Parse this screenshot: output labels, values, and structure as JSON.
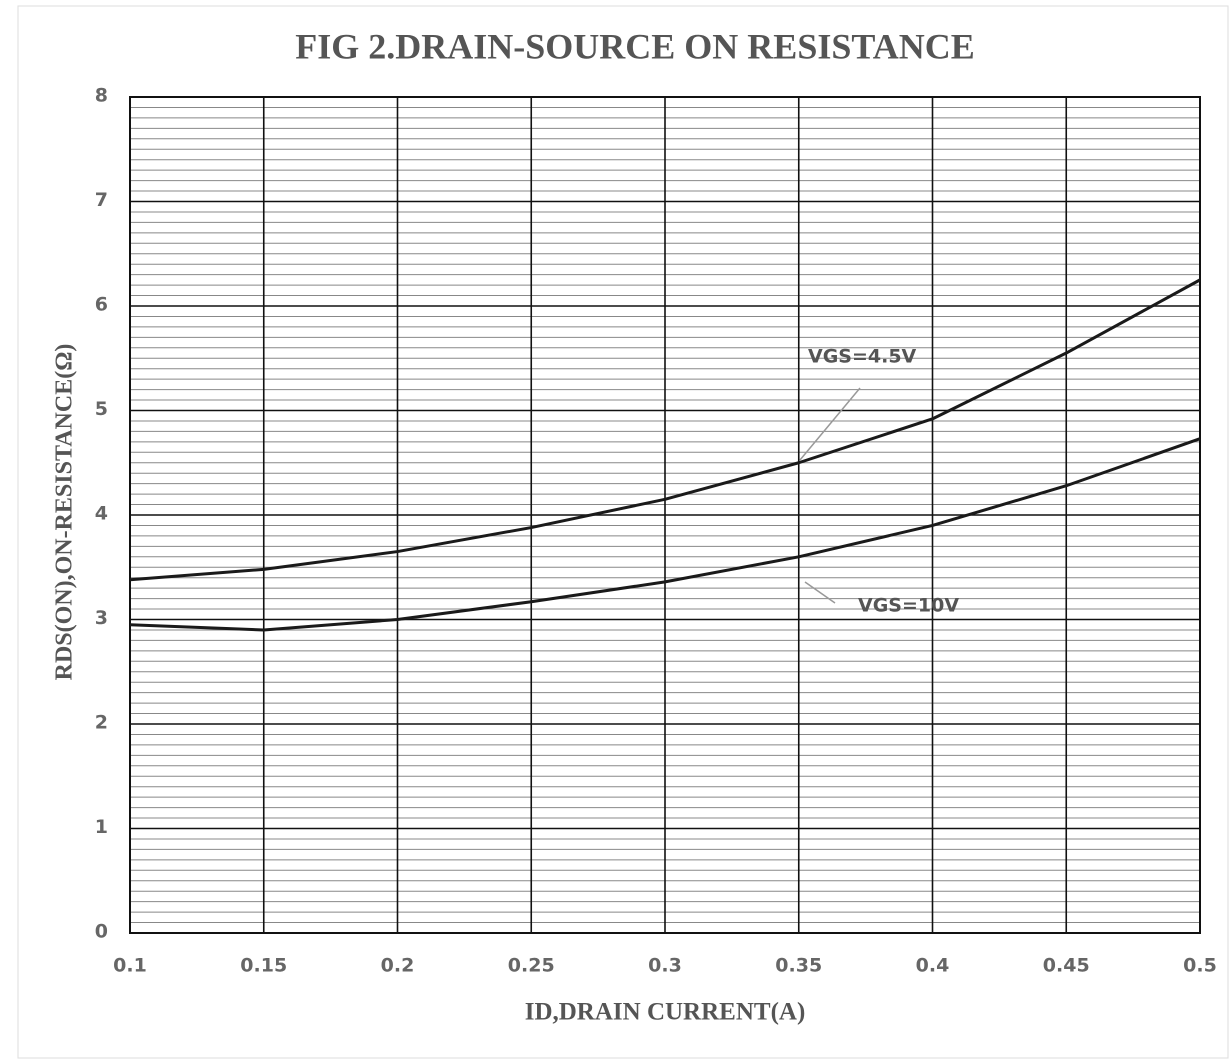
{
  "chart_data": {
    "type": "line",
    "title": "FIG 2.DRAIN-SOURCE ON RESISTANCE",
    "x_label": "ID,DRAIN   CURRENT(A)",
    "y_label": "RDS(ON),ON-RESISTANCE(Ω)",
    "x": [
      0.1,
      0.15,
      0.2,
      0.25,
      0.3,
      0.35,
      0.4,
      0.45,
      0.5
    ],
    "series": [
      {
        "name": "VGS=4.5V",
        "color": "#1a1a1a",
        "values": [
          3.38,
          3.48,
          3.65,
          3.88,
          4.15,
          4.5,
          4.92,
          5.55,
          6.25
        ]
      },
      {
        "name": "VGS=10V",
        "color": "#1a1a1a",
        "values": [
          2.95,
          2.9,
          3.0,
          3.17,
          3.36,
          3.6,
          3.9,
          4.28,
          4.73
        ]
      }
    ],
    "xlim": [
      0.1,
      0.5
    ],
    "xticks": [
      0.1,
      0.15,
      0.2,
      0.25,
      0.3,
      0.35,
      0.4,
      0.45,
      0.5
    ],
    "ylim": [
      0,
      8
    ],
    "yticks": [
      0,
      1,
      2,
      3,
      4,
      5,
      6,
      7,
      8
    ],
    "grid": true,
    "minor_grid": true
  }
}
